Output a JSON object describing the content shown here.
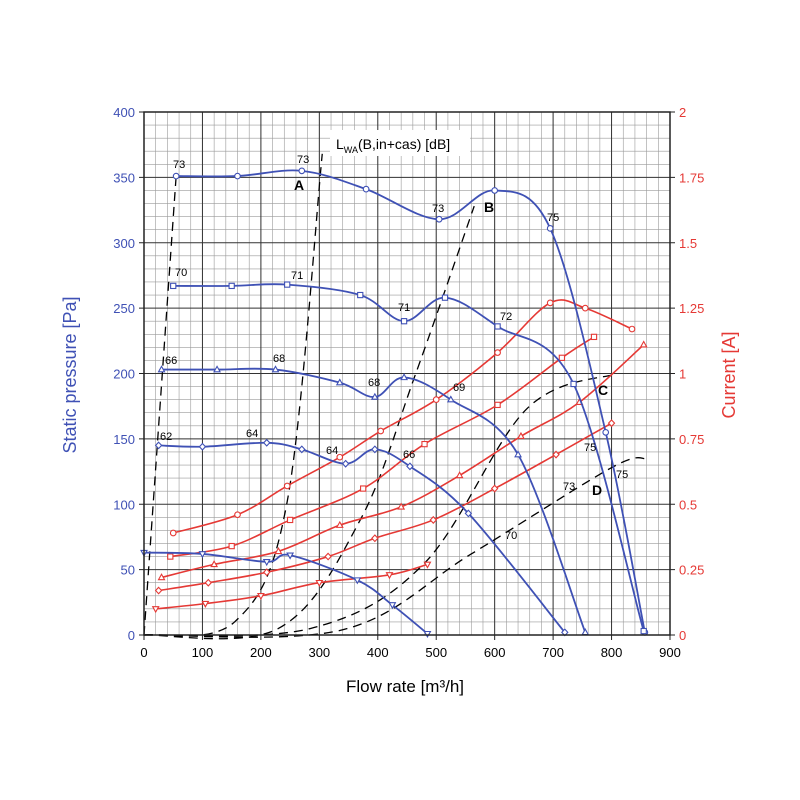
{
  "colors": {
    "pressure": "#3f51b5",
    "current": "#e53935",
    "grid_major": "#333333",
    "grid_minor": "#9a9a9a",
    "dashed": "#000000"
  },
  "chart_data": {
    "type": "line",
    "title": "L_WA(B,in+cas) [dB]",
    "title_main": "L",
    "title_sub": "WA",
    "title_rest": "(B,in+cas) [dB]",
    "xlabel": "Flow rate [m³/h]",
    "ylabel": "Static pressure [Pa]",
    "y2label": "Current [A]",
    "xlim": [
      0,
      900
    ],
    "ylim": [
      0,
      400
    ],
    "y2lim": [
      0,
      2
    ],
    "x_ticks": [
      0,
      100,
      200,
      300,
      400,
      500,
      600,
      700,
      800,
      900
    ],
    "y_ticks": [
      0,
      50,
      100,
      150,
      200,
      250,
      300,
      350,
      400
    ],
    "y2_ticks": [
      "0",
      "0.25",
      "0.5",
      "0.75",
      "1",
      "1.25",
      "1.5",
      "1.75",
      "2"
    ],
    "grid": true,
    "pressure_series": [
      {
        "points": [
          [
            55,
            351
          ],
          [
            160,
            351
          ],
          [
            270,
            355
          ],
          [
            380,
            341
          ],
          [
            505,
            318
          ],
          [
            600,
            340
          ],
          [
            695,
            311
          ],
          [
            790,
            155
          ],
          [
            857,
            2
          ]
        ]
      },
      {
        "points": [
          [
            50,
            267
          ],
          [
            150,
            267
          ],
          [
            245,
            268
          ],
          [
            370,
            260
          ],
          [
            445,
            240
          ],
          [
            515,
            258
          ],
          [
            605,
            236
          ],
          [
            735,
            192
          ],
          [
            855,
            3
          ]
        ]
      },
      {
        "points": [
          [
            30,
            203
          ],
          [
            125,
            203
          ],
          [
            225,
            203
          ],
          [
            335,
            193
          ],
          [
            395,
            182
          ],
          [
            445,
            197
          ],
          [
            525,
            180
          ],
          [
            640,
            138
          ],
          [
            755,
            2
          ]
        ]
      },
      {
        "points": [
          [
            25,
            145
          ],
          [
            100,
            144
          ],
          [
            210,
            147
          ],
          [
            270,
            142
          ],
          [
            345,
            131
          ],
          [
            395,
            142
          ],
          [
            455,
            129
          ],
          [
            555,
            93
          ],
          [
            720,
            2
          ]
        ]
      },
      {
        "points": [
          [
            0,
            63
          ],
          [
            100,
            62
          ],
          [
            210,
            56
          ],
          [
            250,
            61
          ],
          [
            365,
            42
          ],
          [
            425,
            23
          ],
          [
            485,
            1
          ]
        ]
      }
    ],
    "current_series": [
      {
        "points": [
          [
            50,
            0.39
          ],
          [
            160,
            0.46
          ],
          [
            245,
            0.57
          ],
          [
            335,
            0.68
          ],
          [
            405,
            0.78
          ],
          [
            500,
            0.9
          ],
          [
            605,
            1.08
          ],
          [
            695,
            1.27
          ],
          [
            755,
            1.25
          ],
          [
            835,
            1.17
          ]
        ]
      },
      {
        "points": [
          [
            45,
            0.3
          ],
          [
            150,
            0.34
          ],
          [
            250,
            0.44
          ],
          [
            375,
            0.56
          ],
          [
            480,
            0.73
          ],
          [
            605,
            0.88
          ],
          [
            715,
            1.06
          ],
          [
            770,
            1.14
          ]
        ]
      },
      {
        "points": [
          [
            30,
            0.22
          ],
          [
            120,
            0.27
          ],
          [
            230,
            0.32
          ],
          [
            335,
            0.42
          ],
          [
            440,
            0.49
          ],
          [
            540,
            0.61
          ],
          [
            645,
            0.76
          ],
          [
            745,
            0.89
          ],
          [
            855,
            1.11
          ]
        ]
      },
      {
        "points": [
          [
            25,
            0.17
          ],
          [
            110,
            0.2
          ],
          [
            210,
            0.24
          ],
          [
            315,
            0.3
          ],
          [
            395,
            0.37
          ],
          [
            495,
            0.44
          ],
          [
            600,
            0.56
          ],
          [
            705,
            0.69
          ],
          [
            800,
            0.81
          ]
        ]
      },
      {
        "points": [
          [
            20,
            0.1
          ],
          [
            105,
            0.12
          ],
          [
            200,
            0.15
          ],
          [
            300,
            0.2
          ],
          [
            420,
            0.23
          ],
          [
            485,
            0.27
          ]
        ]
      }
    ],
    "dashed_lines": [
      {
        "points": [
          [
            0,
            0
          ],
          [
            55,
            351
          ]
        ]
      },
      {
        "points": [
          [
            0,
            0
          ],
          [
            155,
            10
          ],
          [
            245,
            102
          ],
          [
            305,
            368
          ]
        ]
      },
      {
        "points": [
          [
            0,
            0
          ],
          [
            230,
            5
          ],
          [
            370,
            88
          ],
          [
            465,
            200
          ],
          [
            565,
            328
          ]
        ]
      },
      {
        "points": [
          [
            0,
            0
          ],
          [
            285,
            5
          ],
          [
            480,
            55
          ],
          [
            655,
            173
          ],
          [
            810,
            200
          ]
        ]
      },
      {
        "points": [
          [
            0,
            0
          ],
          [
            340,
            4
          ],
          [
            560,
            62
          ],
          [
            800,
            128
          ],
          [
            860,
            135
          ]
        ]
      }
    ],
    "annotations": [
      "73",
      "73",
      "73",
      "75",
      "70",
      "71",
      "71",
      "72",
      "66",
      "68",
      "68",
      "69",
      "62",
      "64",
      "64",
      "66",
      "75",
      "75",
      "73",
      "70"
    ],
    "letters": [
      "A",
      "B",
      "C",
      "D"
    ]
  }
}
